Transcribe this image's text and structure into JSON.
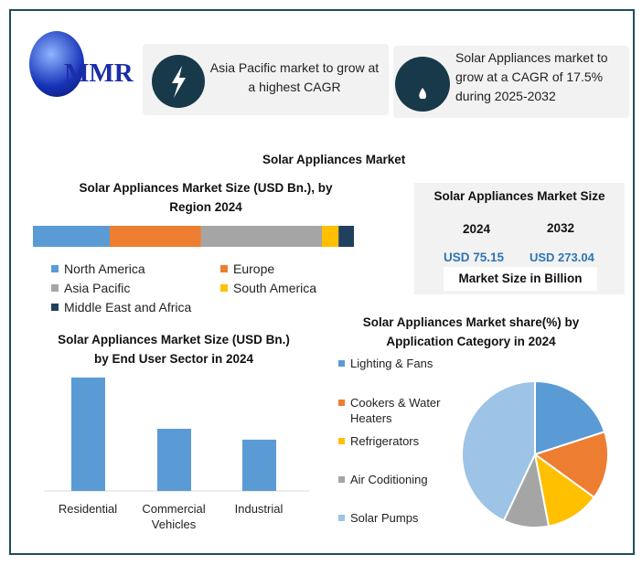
{
  "logo": {
    "text": "MMR"
  },
  "callouts": [
    {
      "icon": "lightning-icon",
      "text_line1": "Asia Pacific market to grow at",
      "text_line2": "a highest CAGR"
    },
    {
      "icon": "flame-icon",
      "text_line1": "Solar Appliances market to",
      "text_line2": "grow at a CAGR of 17.5%",
      "text_line3": "during 2025-2032"
    }
  ],
  "main_title": "Solar Appliances Market",
  "market_size": {
    "title": "Solar Appliances Market Size",
    "year1": "2024",
    "year2": "2032",
    "value1": "USD 75.15",
    "value2": "USD 273.04",
    "footer": "Market Size in Billion"
  },
  "colors": {
    "blue": "#4e8fd4",
    "orange": "#ec7331",
    "gray": "#a5a5a5",
    "yellow": "#fdc010",
    "navy": "#213f5e",
    "light_blue": "#9dc3e6",
    "border": "#1f4e5a",
    "value_text": "#2e75b6"
  },
  "chart_data": [
    {
      "type": "bar",
      "stacked": true,
      "orientation": "horizontal",
      "title_line1": "Solar Appliances Market Size (USD Bn.), by",
      "title_line2": "Region 2024",
      "series": [
        {
          "name": "North America",
          "value": 18.0,
          "color": "#5b9bd5"
        },
        {
          "name": "Europe",
          "value": 21.4,
          "color": "#ed7d31"
        },
        {
          "name": "Asia Pacific",
          "value": 28.3,
          "color": "#a5a5a5"
        },
        {
          "name": "South America",
          "value": 3.9,
          "color": "#ffc000"
        },
        {
          "name": "Middle East and Africa",
          "value": 3.6,
          "color": "#213f5e"
        }
      ]
    },
    {
      "type": "bar",
      "title_line1": "Solar Appliances Market Size (USD Bn.)",
      "title_line2": "by End User Sector in 2024",
      "categories": [
        "Residential",
        "Commercial Vehicles",
        "Industrial"
      ],
      "category_lines": [
        [
          "Residential"
        ],
        [
          "Commercial",
          "Vehicles"
        ],
        [
          "Industrial"
        ]
      ],
      "values": [
        37.6,
        20.6,
        17.0
      ],
      "color": "#5b9bd5",
      "ylim": [
        0,
        40
      ]
    },
    {
      "type": "pie",
      "title_line1": "Solar Appliances Market share(%) by",
      "title_line2": "Application Category in 2024",
      "labels": [
        "Lighting & Fans",
        "Cookers & Water Heaters",
        "Refrigerators",
        "Air Coditioning",
        "Solar Pumps"
      ],
      "label_lines": [
        [
          "Lighting & Fans"
        ],
        [
          "Cookers & Water",
          "Heaters"
        ],
        [
          "Refrigerators"
        ],
        [
          "Air Coditioning"
        ],
        [
          "Solar Pumps"
        ]
      ],
      "values": [
        20,
        15,
        12,
        10,
        43
      ],
      "colors": [
        "#5b9bd5",
        "#ed7d31",
        "#ffc000",
        "#a5a5a5",
        "#9dc3e6"
      ]
    }
  ]
}
